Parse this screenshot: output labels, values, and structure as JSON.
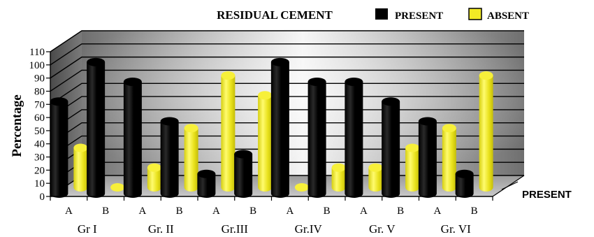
{
  "chart_data": {
    "type": "bar",
    "title": "RESIDUAL CEMENT",
    "ylabel": "Percentage",
    "xlabel": "",
    "ylim": [
      0,
      110
    ],
    "yticks": [
      0,
      10,
      20,
      30,
      40,
      50,
      60,
      70,
      80,
      90,
      100,
      110
    ],
    "grid": true,
    "legend_position": "top-right",
    "depth_axis_label": "PRESENT",
    "categories": [
      "A",
      "B",
      "A",
      "B",
      "A",
      "B",
      "A",
      "B",
      "A",
      "B",
      "A",
      "B"
    ],
    "groups": [
      {
        "label": "Gr I",
        "span": [
          0,
          1
        ]
      },
      {
        "label": "Gr. II",
        "span": [
          2,
          3
        ]
      },
      {
        "label": "Gr.III",
        "span": [
          4,
          5
        ]
      },
      {
        "label": "Gr.IV",
        "span": [
          6,
          7
        ]
      },
      {
        "label": "Gr. V",
        "span": [
          8,
          9
        ]
      },
      {
        "label": "Gr. VI",
        "span": [
          10,
          11
        ]
      }
    ],
    "series": [
      {
        "name": "PRESENT",
        "color": "#000000",
        "values": [
          70,
          100,
          85,
          55,
          15,
          30,
          100,
          85,
          85,
          70,
          55,
          15
        ]
      },
      {
        "name": "ABSENT",
        "color": "#f2ea25",
        "values": [
          30,
          0,
          15,
          45,
          85,
          70,
          0,
          15,
          15,
          30,
          45,
          85
        ]
      }
    ]
  }
}
